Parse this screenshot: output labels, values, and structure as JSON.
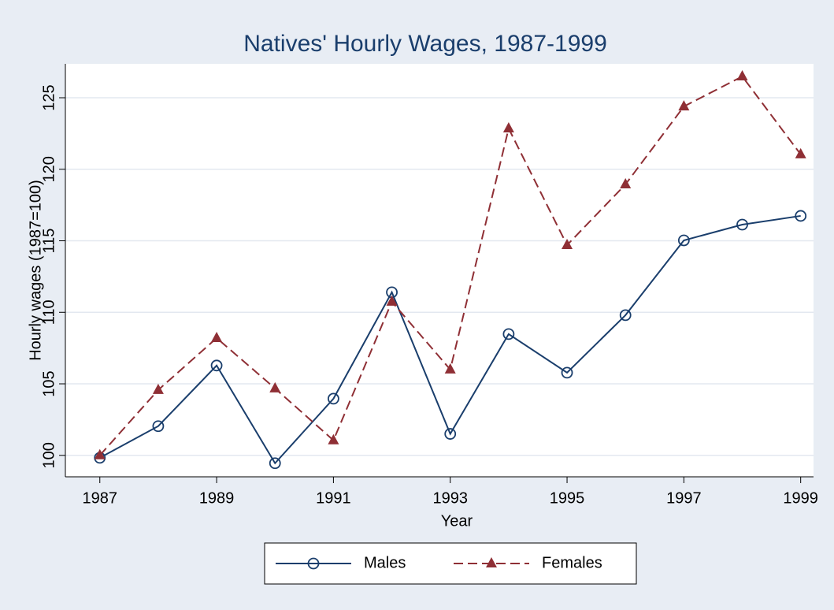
{
  "chart_data": {
    "type": "line",
    "title": "Natives' Hourly Wages, 1987-1999",
    "x_label": "Year",
    "y_label": "Hourly wages (1987=100)",
    "x": [
      1987,
      1988,
      1989,
      1990,
      1991,
      1992,
      1993,
      1994,
      1995,
      1996,
      1997,
      1998,
      1999
    ],
    "series": [
      {
        "name": "Males",
        "color": "#1a3e6c",
        "marker": "circle",
        "dash": "solid",
        "values": [
          99.83,
          102.04,
          106.28,
          99.45,
          103.96,
          111.4,
          101.5,
          108.48,
          105.78,
          109.8,
          115.03,
          116.13,
          116.74
        ]
      },
      {
        "name": "Females",
        "color": "#8f2f35",
        "marker": "triangle",
        "dash": "dashed",
        "values": [
          100,
          104.57,
          108.2,
          104.68,
          101.05,
          110.74,
          106.0,
          122.85,
          114.7,
          118.94,
          124.39,
          126.49,
          121.04
        ]
      }
    ],
    "xlim": [
      1986.41,
      1999.22
    ],
    "xticks": [
      1987,
      1989,
      1991,
      1993,
      1995,
      1997,
      1999
    ],
    "ylim": [
      98.5,
      127.37
    ],
    "yticks": [
      100,
      105,
      110,
      115,
      120,
      125
    ],
    "grid": true,
    "legend": "bottom"
  }
}
